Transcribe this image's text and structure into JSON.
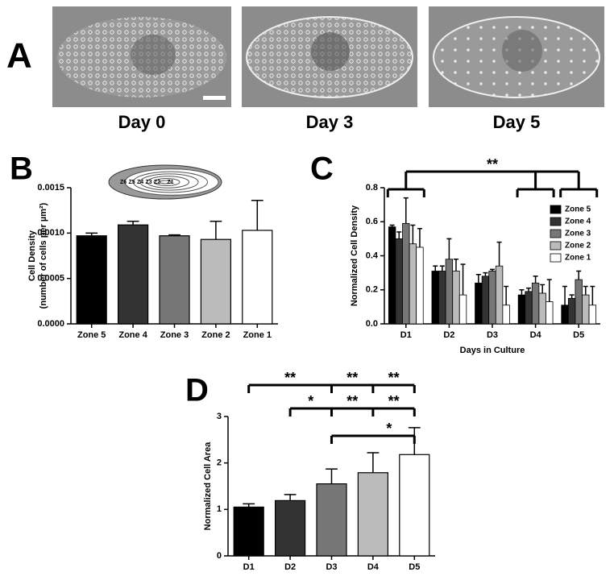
{
  "panel_a": {
    "label": "A",
    "captions": [
      "Day 0",
      "Day 3",
      "Day 5"
    ]
  },
  "chart_data": [
    {
      "type": "bar",
      "panel_label": "B",
      "ylabel": [
        "Cell Density",
        "(number of cells per µm²)"
      ],
      "categories": [
        "Zone 5",
        "Zone 4",
        "Zone 3",
        "Zone 2",
        "Zone 1"
      ],
      "values": [
        0.00097,
        0.00109,
        0.00097,
        0.00093,
        0.00103
      ],
      "errors": [
        3e-05,
        4e-05,
        1e-05,
        0.0002,
        0.00033
      ],
      "colors": [
        "#000000",
        "#333333",
        "#777777",
        "#bbbbbb",
        "#ffffff"
      ],
      "ylim": [
        0,
        0.0015
      ],
      "yticks": [
        {
          "value": 0,
          "label": "0.0000"
        },
        {
          "value": 0.0005,
          "label": "0.0005"
        },
        {
          "value": 0.001,
          "label": "0.0010"
        },
        {
          "value": 0.0015,
          "label": "0.0015"
        }
      ],
      "inset_labels": [
        "Z6",
        "Z5",
        "Z4",
        "Z3",
        "Z2",
        "Z1"
      ]
    },
    {
      "type": "grouped_bar",
      "panel_label": "C",
      "ylabel": "Normalized Cell Density",
      "xlabel": "Days in Culture",
      "categories": [
        "D1",
        "D2",
        "D3",
        "D4",
        "D5"
      ],
      "series": [
        {
          "name": "Zone 5",
          "color": "#000000",
          "values": [
            0.57,
            0.31,
            0.24,
            0.17,
            0.11
          ],
          "errors": [
            0.01,
            0.03,
            0.05,
            0.03,
            0.11
          ]
        },
        {
          "name": "Zone 4",
          "color": "#333333",
          "values": [
            0.5,
            0.31,
            0.28,
            0.19,
            0.15
          ],
          "errors": [
            0.04,
            0.03,
            0.02,
            0.02,
            0.02
          ]
        },
        {
          "name": "Zone 3",
          "color": "#777777",
          "values": [
            0.59,
            0.38,
            0.31,
            0.24,
            0.26
          ],
          "errors": [
            0.15,
            0.12,
            0.01,
            0.04,
            0.05
          ]
        },
        {
          "name": "Zone 2",
          "color": "#bbbbbb",
          "values": [
            0.47,
            0.31,
            0.34,
            0.18,
            0.17
          ],
          "errors": [
            0.11,
            0.07,
            0.14,
            0.05,
            0.05
          ]
        },
        {
          "name": "Zone 1",
          "color": "#ffffff",
          "values": [
            0.45,
            0.17,
            0.11,
            0.13,
            0.11
          ],
          "errors": [
            0.11,
            0.18,
            0.11,
            0.13,
            0.11
          ]
        }
      ],
      "ylim": [
        0,
        0.8
      ],
      "yticks": [
        {
          "value": 0,
          "label": "0.0"
        },
        0.2,
        0.4,
        0.6,
        0.8
      ],
      "legend": "upper right",
      "annotations": [
        "**"
      ]
    },
    {
      "type": "bar",
      "panel_label": "D",
      "ylabel": "Normalized Cell Area",
      "categories": [
        "D1",
        "D2",
        "D3",
        "D4",
        "D5"
      ],
      "values": [
        1.05,
        1.19,
        1.55,
        1.79,
        2.18
      ],
      "errors": [
        0.07,
        0.13,
        0.32,
        0.43,
        0.58
      ],
      "colors": [
        "#000000",
        "#333333",
        "#777777",
        "#bbbbbb",
        "#ffffff"
      ],
      "ylim": [
        0,
        3
      ],
      "yticks": [
        0,
        1,
        2,
        3
      ],
      "annotations": [
        "**",
        "**",
        "**",
        "*",
        "**",
        "**",
        "*"
      ]
    }
  ]
}
